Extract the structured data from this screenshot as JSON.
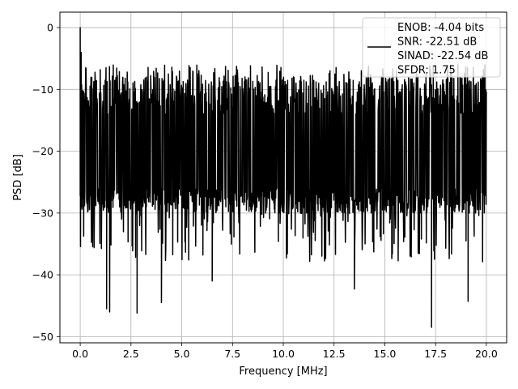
{
  "chart_data": {
    "type": "line",
    "xlabel": "Frequency [MHz]",
    "ylabel": "PSD [dB]",
    "xlim": [
      -1.0,
      21.0
    ],
    "ylim": [
      -51.0,
      2.5
    ],
    "xticks": [
      0.0,
      2.5,
      5.0,
      7.5,
      10.0,
      12.5,
      15.0,
      17.5,
      20.0
    ],
    "xtick_labels": [
      "0.0",
      "2.5",
      "5.0",
      "7.5",
      "10.0",
      "12.5",
      "15.0",
      "17.5",
      "20.0"
    ],
    "yticks": [
      0,
      -10,
      -20,
      -30,
      -40,
      -50
    ],
    "ytick_labels": [
      "0",
      "−10",
      "−20",
      "−30",
      "−40",
      "−50"
    ],
    "grid": true,
    "legend_position": "top-right",
    "line_color": "#000000",
    "series": [
      {
        "name": "ENOB: -4.04 bits\nSNR: -22.51 dB\nSINAD: -22.54 dB\nSFDR: 1.75",
        "x_range": [
          0.0,
          20.0
        ],
        "typical_range": [
          -28,
          -8
        ],
        "peaks": [
          {
            "x": 0.0,
            "y": 0
          },
          {
            "x": 0.05,
            "y": -4
          }
        ],
        "notable_minima": [
          {
            "x": 1.3,
            "y": -45.5
          },
          {
            "x": 1.45,
            "y": -46.0
          },
          {
            "x": 2.8,
            "y": -46.2
          },
          {
            "x": 4.0,
            "y": -44.5
          },
          {
            "x": 6.5,
            "y": -41.0
          },
          {
            "x": 13.5,
            "y": -42.3
          },
          {
            "x": 17.3,
            "y": -48.5
          },
          {
            "x": 19.1,
            "y": -44.3
          }
        ]
      }
    ]
  }
}
